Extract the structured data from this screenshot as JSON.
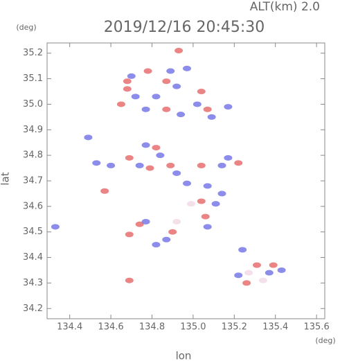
{
  "chart_data": {
    "type": "scatter",
    "title": "2019/12/16 20:45:30",
    "subtitle": "ALT(km) 2.0",
    "x_label": "lon",
    "y_label": "lat",
    "x_unit": "(deg)",
    "y_unit": "(deg)",
    "xlim": [
      134.29,
      135.64
    ],
    "ylim": [
      34.16,
      35.24
    ],
    "xticks": [
      {
        "value": 134.4,
        "label": "134.4"
      },
      {
        "value": 134.6,
        "label": "134.6"
      },
      {
        "value": 134.8,
        "label": "134.8"
      },
      {
        "value": 135,
        "label": "135.0"
      },
      {
        "value": 135.2,
        "label": "135.2"
      },
      {
        "value": 135.4,
        "label": "135.4"
      },
      {
        "value": 135.6,
        "label": "135.6"
      }
    ],
    "yticks": [
      {
        "value": 34.2,
        "label": "34.2"
      },
      {
        "value": 34.3,
        "label": "34.3"
      },
      {
        "value": 34.4,
        "label": "34.4"
      },
      {
        "value": 34.5,
        "label": "34.5"
      },
      {
        "value": 34.6,
        "label": "34.6"
      },
      {
        "value": 34.7,
        "label": "34.7"
      },
      {
        "value": 34.8,
        "label": "34.8"
      },
      {
        "value": 34.9,
        "label": "34.9"
      },
      {
        "value": 35,
        "label": "35.0"
      },
      {
        "value": 35.1,
        "label": "35.1"
      },
      {
        "value": 35.2,
        "label": "35.2"
      }
    ],
    "x": [
      134.68,
      134.7,
      134.68,
      134.72,
      134.78,
      134.89,
      134.87,
      134.92,
      134.97,
      134.93,
      134.82,
      135.04,
      135.02,
      134.87,
      134.94,
      135.07,
      135.09,
      135.17,
      134.65,
      134.77,
      134.53,
      134.6,
      134.69,
      134.74,
      134.79,
      134.84,
      134.89,
      134.92,
      134.82,
      134.77,
      135.04,
      135.14,
      135.22,
      135.17,
      134.97,
      135.07,
      135.04,
      135.11,
      135.14,
      134.99,
      134.92,
      134.87,
      134.9,
      134.82,
      134.74,
      134.69,
      134.77,
      135.06,
      135.07,
      135.24,
      135.27,
      135.22,
      135.31,
      135.39,
      135.43,
      135.34,
      135.26,
      135.37,
      134.69,
      134.33,
      134.49,
      134.57
    ],
    "values": [
      35.09,
      35.11,
      35.06,
      35.03,
      35.13,
      35.13,
      35.09,
      35.07,
      35.14,
      35.21,
      35.03,
      35.05,
      35.0,
      34.98,
      34.96,
      34.98,
      34.95,
      34.99,
      35.0,
      34.98,
      34.77,
      34.76,
      34.79,
      34.76,
      34.75,
      34.8,
      34.76,
      34.73,
      34.83,
      34.84,
      34.76,
      34.76,
      34.77,
      34.79,
      34.69,
      34.68,
      34.62,
      34.61,
      34.65,
      34.61,
      34.54,
      34.47,
      34.5,
      34.45,
      34.53,
      34.49,
      34.54,
      34.56,
      34.52,
      34.43,
      34.34,
      34.33,
      34.37,
      34.37,
      34.35,
      34.31,
      34.3,
      34.34,
      34.31,
      34.52,
      34.87,
      34.66
    ],
    "colors": [
      "#e87070",
      "#7878e8",
      "#e87070",
      "#7878e8",
      "#e87070",
      "#7878e8",
      "#e87070",
      "#7878e8",
      "#7878e8",
      "#e87070",
      "#7878e8",
      "#e87070",
      "#7878e8",
      "#e87070",
      "#7878e8",
      "#e87070",
      "#7878e8",
      "#7878e8",
      "#e87070",
      "#7878e8",
      "#7878e8",
      "#7878e8",
      "#e87070",
      "#7878e8",
      "#e87070",
      "#7878e8",
      "#e87070",
      "#7878e8",
      "#e87070",
      "#7878e8",
      "#e87070",
      "#7878e8",
      "#e87070",
      "#7878e8",
      "#7878e8",
      "#7878e8",
      "#e87070",
      "#7878e8",
      "#7878e8",
      "#f2dbe6",
      "#f2dbe6",
      "#7878e8",
      "#e87070",
      "#7878e8",
      "#e87070",
      "#e87070",
      "#7878e8",
      "#e87070",
      "#7878e8",
      "#7878e8",
      "#f2dbe6",
      "#7878e8",
      "#e87070",
      "#e87070",
      "#7878e8",
      "#f2dbe6",
      "#e87070",
      "#7878e8",
      "#e87070",
      "#7878e8",
      "#7878e8",
      "#e87070"
    ]
  }
}
